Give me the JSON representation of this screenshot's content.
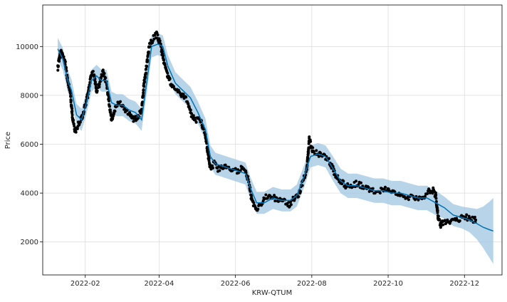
{
  "chart_data": {
    "type": "line",
    "xlabel": "KRW-QTUM",
    "ylabel": "Price",
    "grid": true,
    "x_ticks": [
      "2022-02",
      "2022-04",
      "2022-06",
      "2022-08",
      "2022-10",
      "2022-12"
    ],
    "y_ticks": [
      2000,
      4000,
      6000,
      8000,
      10000
    ],
    "xlim": [
      "2021-12-29",
      "2022-12-31"
    ],
    "ylim": [
      650,
      11700
    ],
    "series": [
      {
        "kind": "observed",
        "color": "#000000",
        "points": [
          [
            "2022-01-10",
            9100
          ],
          [
            "2022-01-12",
            9800
          ],
          [
            "2022-01-14",
            9600
          ],
          [
            "2022-01-16",
            9300
          ],
          [
            "2022-01-18",
            8600
          ],
          [
            "2022-01-20",
            8100
          ],
          [
            "2022-01-22",
            7000
          ],
          [
            "2022-01-24",
            6500
          ],
          [
            "2022-01-27",
            6900
          ],
          [
            "2022-01-30",
            7200
          ],
          [
            "2022-02-03",
            8000
          ],
          [
            "2022-02-06",
            8900
          ],
          [
            "2022-02-08",
            8900
          ],
          [
            "2022-02-10",
            8200
          ],
          [
            "2022-02-12",
            8400
          ],
          [
            "2022-02-15",
            9000
          ],
          [
            "2022-02-18",
            8500
          ],
          [
            "2022-02-20",
            7700
          ],
          [
            "2022-02-22",
            7000
          ],
          [
            "2022-02-25",
            7500
          ],
          [
            "2022-02-28",
            7700
          ],
          [
            "2022-03-03",
            7500
          ],
          [
            "2022-03-06",
            7300
          ],
          [
            "2022-03-09",
            7200
          ],
          [
            "2022-03-12",
            7000
          ],
          [
            "2022-03-15",
            7100
          ],
          [
            "2022-03-18",
            7400
          ],
          [
            "2022-03-20",
            8500
          ],
          [
            "2022-03-22",
            9200
          ],
          [
            "2022-03-24",
            10000
          ],
          [
            "2022-03-27",
            10300
          ],
          [
            "2022-03-30",
            10500
          ],
          [
            "2022-04-02",
            10100
          ],
          [
            "2022-04-05",
            9300
          ],
          [
            "2022-04-08",
            8800
          ],
          [
            "2022-04-12",
            8300
          ],
          [
            "2022-04-16",
            8200
          ],
          [
            "2022-04-20",
            8000
          ],
          [
            "2022-04-24",
            7700
          ],
          [
            "2022-04-27",
            7200
          ],
          [
            "2022-04-30",
            7000
          ],
          [
            "2022-05-04",
            7000
          ],
          [
            "2022-05-08",
            6400
          ],
          [
            "2022-05-10",
            5600
          ],
          [
            "2022-05-12",
            5000
          ],
          [
            "2022-05-15",
            5200
          ],
          [
            "2022-05-18",
            5000
          ],
          [
            "2022-05-22",
            5100
          ],
          [
            "2022-05-26",
            5000
          ],
          [
            "2022-05-30",
            5000
          ],
          [
            "2022-06-03",
            4900
          ],
          [
            "2022-06-06",
            5000
          ],
          [
            "2022-06-09",
            4900
          ],
          [
            "2022-06-12",
            4400
          ],
          [
            "2022-06-14",
            3700
          ],
          [
            "2022-06-16",
            3500
          ],
          [
            "2022-06-18",
            3300
          ],
          [
            "2022-06-21",
            3500
          ],
          [
            "2022-06-24",
            3800
          ],
          [
            "2022-06-28",
            3900
          ],
          [
            "2022-07-02",
            3800
          ],
          [
            "2022-07-06",
            3700
          ],
          [
            "2022-07-10",
            3700
          ],
          [
            "2022-07-14",
            3500
          ],
          [
            "2022-07-18",
            3800
          ],
          [
            "2022-07-22",
            4000
          ],
          [
            "2022-07-25",
            4500
          ],
          [
            "2022-07-28",
            5000
          ],
          [
            "2022-07-30",
            6200
          ],
          [
            "2022-08-02",
            5700
          ],
          [
            "2022-08-06",
            5600
          ],
          [
            "2022-08-10",
            5500
          ],
          [
            "2022-08-14",
            5400
          ],
          [
            "2022-08-18",
            5000
          ],
          [
            "2022-08-20",
            4700
          ],
          [
            "2022-08-24",
            4500
          ],
          [
            "2022-08-28",
            4300
          ],
          [
            "2022-09-02",
            4300
          ],
          [
            "2022-09-06",
            4400
          ],
          [
            "2022-09-10",
            4300
          ],
          [
            "2022-09-14",
            4200
          ],
          [
            "2022-09-18",
            4100
          ],
          [
            "2022-09-24",
            4100
          ],
          [
            "2022-09-28",
            4200
          ],
          [
            "2022-10-02",
            4100
          ],
          [
            "2022-10-08",
            4000
          ],
          [
            "2022-10-14",
            3900
          ],
          [
            "2022-10-20",
            3800
          ],
          [
            "2022-10-26",
            3800
          ],
          [
            "2022-10-30",
            3900
          ],
          [
            "2022-11-03",
            4100
          ],
          [
            "2022-11-06",
            4100
          ],
          [
            "2022-11-08",
            3900
          ],
          [
            "2022-11-10",
            3000
          ],
          [
            "2022-11-12",
            2700
          ],
          [
            "2022-11-14",
            2800
          ],
          [
            "2022-11-18",
            2800
          ],
          [
            "2022-11-22",
            2900
          ],
          [
            "2022-11-26",
            2900
          ],
          [
            "2022-11-30",
            3000
          ],
          [
            "2022-12-04",
            3000
          ],
          [
            "2022-12-08",
            2900
          ],
          [
            "2022-12-10",
            2900
          ]
        ]
      },
      {
        "kind": "forecast",
        "color": "#0072b2",
        "band_color": "#9fc6e0",
        "points": [
          [
            "2022-01-10",
            9900,
            9450,
            10350
          ],
          [
            "2022-01-14",
            9500,
            9050,
            9950
          ],
          [
            "2022-01-18",
            8600,
            8150,
            9050
          ],
          [
            "2022-01-21",
            8200,
            7750,
            8650
          ],
          [
            "2022-01-25",
            7200,
            6750,
            7650
          ],
          [
            "2022-01-29",
            7000,
            6550,
            7450
          ],
          [
            "2022-02-02",
            7700,
            7250,
            8150
          ],
          [
            "2022-02-06",
            8600,
            8150,
            9050
          ],
          [
            "2022-02-10",
            8800,
            8350,
            9250
          ],
          [
            "2022-02-14",
            8600,
            8150,
            9050
          ],
          [
            "2022-02-18",
            8600,
            8150,
            9050
          ],
          [
            "2022-02-22",
            7700,
            7250,
            8150
          ],
          [
            "2022-02-26",
            7600,
            7150,
            8050
          ],
          [
            "2022-03-03",
            7600,
            7150,
            8050
          ],
          [
            "2022-03-08",
            7400,
            6950,
            7850
          ],
          [
            "2022-03-13",
            7300,
            6850,
            7750
          ],
          [
            "2022-03-18",
            7000,
            6550,
            7450
          ],
          [
            "2022-03-22",
            8500,
            8050,
            8950
          ],
          [
            "2022-03-26",
            10000,
            9550,
            10450
          ],
          [
            "2022-03-31",
            10100,
            9650,
            10550
          ],
          [
            "2022-04-04",
            10000,
            9550,
            10450
          ],
          [
            "2022-04-08",
            9200,
            8750,
            9650
          ],
          [
            "2022-04-14",
            8500,
            8050,
            8950
          ],
          [
            "2022-04-20",
            8200,
            7750,
            8650
          ],
          [
            "2022-04-26",
            7900,
            7450,
            8350
          ],
          [
            "2022-05-02",
            7300,
            6850,
            7750
          ],
          [
            "2022-05-08",
            6600,
            6150,
            7050
          ],
          [
            "2022-05-12",
            5500,
            5050,
            5950
          ],
          [
            "2022-05-16",
            5200,
            4750,
            5650
          ],
          [
            "2022-05-22",
            5100,
            4650,
            5550
          ],
          [
            "2022-05-28",
            5000,
            4550,
            5450
          ],
          [
            "2022-06-03",
            4900,
            4450,
            5350
          ],
          [
            "2022-06-09",
            4800,
            4350,
            5250
          ],
          [
            "2022-06-13",
            4200,
            3750,
            4650
          ],
          [
            "2022-06-18",
            3600,
            3150,
            4050
          ],
          [
            "2022-06-24",
            3600,
            3150,
            4050
          ],
          [
            "2022-07-01",
            3800,
            3350,
            4250
          ],
          [
            "2022-07-08",
            3700,
            3250,
            4150
          ],
          [
            "2022-07-15",
            3700,
            3250,
            4150
          ],
          [
            "2022-07-20",
            3900,
            3450,
            4350
          ],
          [
            "2022-07-26",
            4700,
            4250,
            5150
          ],
          [
            "2022-07-31",
            5500,
            5050,
            5950
          ],
          [
            "2022-08-06",
            5600,
            5150,
            6050
          ],
          [
            "2022-08-12",
            5500,
            5050,
            5950
          ],
          [
            "2022-08-18",
            5000,
            4500,
            5500
          ],
          [
            "2022-08-24",
            4500,
            4000,
            5000
          ],
          [
            "2022-08-30",
            4300,
            3800,
            4800
          ],
          [
            "2022-09-06",
            4300,
            3800,
            4800
          ],
          [
            "2022-09-13",
            4200,
            3700,
            4700
          ],
          [
            "2022-09-20",
            4100,
            3600,
            4600
          ],
          [
            "2022-09-27",
            4100,
            3600,
            4600
          ],
          [
            "2022-10-04",
            4000,
            3500,
            4500
          ],
          [
            "2022-10-11",
            4000,
            3500,
            4500
          ],
          [
            "2022-10-18",
            3900,
            3400,
            4400
          ],
          [
            "2022-10-25",
            3800,
            3300,
            4300
          ],
          [
            "2022-11-01",
            3800,
            3300,
            4300
          ],
          [
            "2022-11-08",
            3600,
            3100,
            4100
          ],
          [
            "2022-11-15",
            3400,
            2950,
            3850
          ],
          [
            "2022-11-22",
            3100,
            2650,
            3550
          ],
          [
            "2022-11-29",
            3000,
            2550,
            3450
          ],
          [
            "2022-12-05",
            2900,
            2400,
            3400
          ],
          [
            "2022-12-11",
            2750,
            2100,
            3350
          ],
          [
            "2022-12-16",
            2600,
            1750,
            3450
          ],
          [
            "2022-12-21",
            2500,
            1350,
            3650
          ],
          [
            "2022-12-24",
            2450,
            1100,
            3800
          ]
        ]
      }
    ]
  }
}
